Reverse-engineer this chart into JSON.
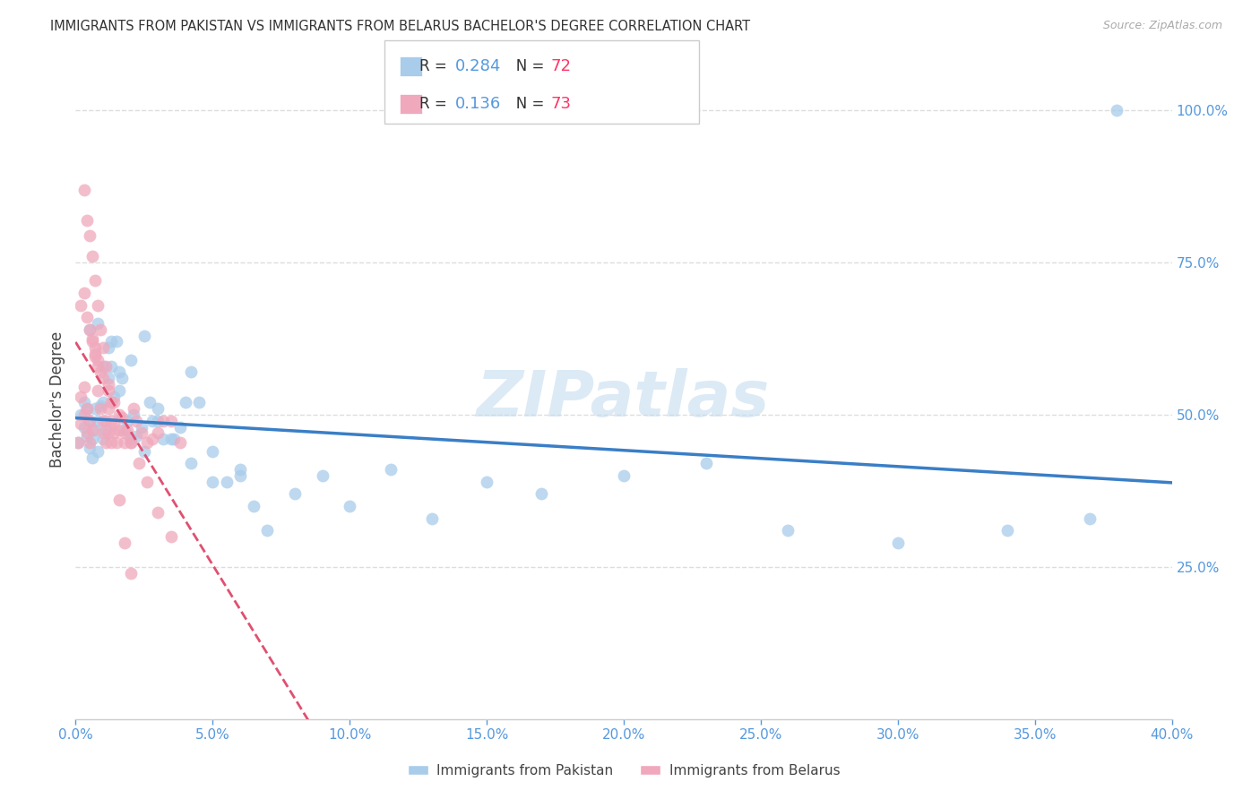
{
  "title": "IMMIGRANTS FROM PAKISTAN VS IMMIGRANTS FROM BELARUS BACHELOR'S DEGREE CORRELATION CHART",
  "source": "Source: ZipAtlas.com",
  "ylabel": "Bachelor's Degree",
  "ytick_labels": [
    "100.0%",
    "75.0%",
    "50.0%",
    "25.0%"
  ],
  "ytick_values": [
    1.0,
    0.75,
    0.5,
    0.25
  ],
  "xlim": [
    0.0,
    0.4
  ],
  "ylim": [
    0.0,
    1.05
  ],
  "background_color": "#ffffff",
  "grid_color": "#dddddd",
  "series1_name": "Immigrants from Pakistan",
  "series2_name": "Immigrants from Belarus",
  "series1_color": "#A8CCEA",
  "series2_color": "#F0A8BC",
  "series1_R": 0.284,
  "series1_N": 72,
  "series2_R": 0.136,
  "series2_N": 73,
  "line1_color": "#3A7EC6",
  "line2_color": "#E05070",
  "watermark": "ZIPatlas",
  "pakistan_x": [
    0.001,
    0.002,
    0.003,
    0.003,
    0.004,
    0.004,
    0.005,
    0.005,
    0.006,
    0.006,
    0.007,
    0.007,
    0.008,
    0.008,
    0.009,
    0.01,
    0.01,
    0.011,
    0.012,
    0.012,
    0.013,
    0.014,
    0.015,
    0.016,
    0.017,
    0.018,
    0.019,
    0.02,
    0.021,
    0.022,
    0.024,
    0.025,
    0.027,
    0.028,
    0.03,
    0.032,
    0.035,
    0.038,
    0.04,
    0.042,
    0.045,
    0.05,
    0.055,
    0.06,
    0.065,
    0.07,
    0.08,
    0.09,
    0.1,
    0.115,
    0.13,
    0.15,
    0.17,
    0.2,
    0.23,
    0.26,
    0.3,
    0.34,
    0.37,
    0.005,
    0.008,
    0.01,
    0.013,
    0.016,
    0.02,
    0.025,
    0.03,
    0.036,
    0.042,
    0.05,
    0.06,
    0.38
  ],
  "pakistan_y": [
    0.455,
    0.5,
    0.52,
    0.48,
    0.51,
    0.465,
    0.49,
    0.445,
    0.43,
    0.46,
    0.51,
    0.475,
    0.44,
    0.49,
    0.515,
    0.46,
    0.52,
    0.475,
    0.56,
    0.61,
    0.58,
    0.53,
    0.62,
    0.54,
    0.56,
    0.475,
    0.49,
    0.46,
    0.5,
    0.465,
    0.48,
    0.44,
    0.52,
    0.49,
    0.51,
    0.46,
    0.46,
    0.48,
    0.52,
    0.57,
    0.52,
    0.44,
    0.39,
    0.4,
    0.35,
    0.31,
    0.37,
    0.4,
    0.35,
    0.41,
    0.33,
    0.39,
    0.37,
    0.4,
    0.42,
    0.31,
    0.29,
    0.31,
    0.33,
    0.64,
    0.65,
    0.58,
    0.62,
    0.57,
    0.59,
    0.63,
    0.49,
    0.46,
    0.42,
    0.39,
    0.41,
    1.0
  ],
  "belarus_x": [
    0.001,
    0.002,
    0.002,
    0.003,
    0.003,
    0.004,
    0.004,
    0.005,
    0.005,
    0.006,
    0.006,
    0.007,
    0.007,
    0.008,
    0.008,
    0.009,
    0.009,
    0.01,
    0.01,
    0.011,
    0.011,
    0.012,
    0.012,
    0.013,
    0.013,
    0.014,
    0.015,
    0.016,
    0.017,
    0.018,
    0.019,
    0.02,
    0.021,
    0.022,
    0.024,
    0.026,
    0.028,
    0.03,
    0.032,
    0.035,
    0.038,
    0.002,
    0.003,
    0.004,
    0.005,
    0.006,
    0.007,
    0.008,
    0.01,
    0.012,
    0.014,
    0.016,
    0.018,
    0.02,
    0.023,
    0.026,
    0.03,
    0.035,
    0.003,
    0.004,
    0.005,
    0.006,
    0.007,
    0.008,
    0.009,
    0.01,
    0.011,
    0.012,
    0.013,
    0.014,
    0.016,
    0.018,
    0.02
  ],
  "belarus_y": [
    0.455,
    0.485,
    0.53,
    0.5,
    0.545,
    0.51,
    0.47,
    0.49,
    0.455,
    0.475,
    0.625,
    0.61,
    0.595,
    0.54,
    0.58,
    0.57,
    0.51,
    0.49,
    0.47,
    0.455,
    0.49,
    0.51,
    0.47,
    0.49,
    0.455,
    0.47,
    0.455,
    0.475,
    0.495,
    0.455,
    0.475,
    0.455,
    0.51,
    0.49,
    0.47,
    0.455,
    0.46,
    0.47,
    0.49,
    0.49,
    0.455,
    0.68,
    0.7,
    0.66,
    0.64,
    0.62,
    0.6,
    0.59,
    0.56,
    0.54,
    0.52,
    0.5,
    0.47,
    0.455,
    0.42,
    0.39,
    0.34,
    0.3,
    0.87,
    0.82,
    0.795,
    0.76,
    0.72,
    0.68,
    0.64,
    0.61,
    0.58,
    0.55,
    0.52,
    0.485,
    0.36,
    0.29,
    0.24
  ]
}
